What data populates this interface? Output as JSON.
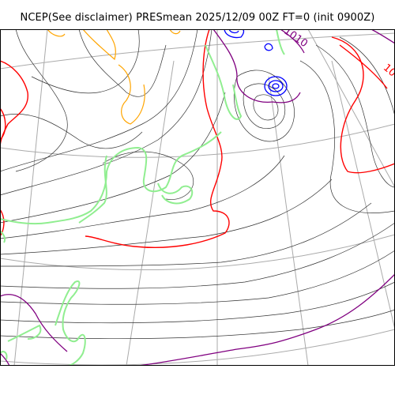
{
  "title": "NCEP(See disclaimer) PRESmean 2025/12/09 00Z FT=0 (init 0900Z)",
  "contour_labels": [
    "1010",
    "10"
  ],
  "colors": {
    "isobar": "#222222",
    "isobar_1010": "#ff0000",
    "isobar_low": "#0000ff",
    "isobar_purple": "#800080",
    "coastline": "#90ee90",
    "orange_contour": "#ffa500",
    "graticule": "#aaaaaa"
  }
}
